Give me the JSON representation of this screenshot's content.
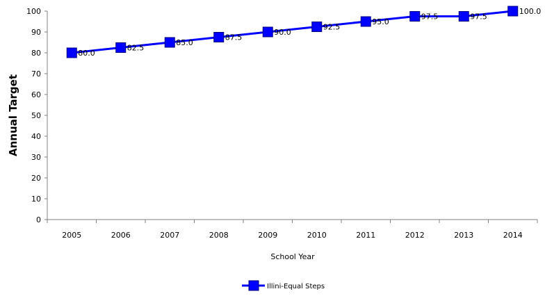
{
  "chart_data": {
    "type": "line",
    "title": "",
    "xlabel": "School Year",
    "ylabel": "Annual Target",
    "categories": [
      "2005",
      "2006",
      "2007",
      "2008",
      "2009",
      "2010",
      "2011",
      "2012",
      "2013",
      "2014"
    ],
    "series": [
      {
        "name": "Illini-Equal Steps",
        "values": [
          80.0,
          82.5,
          85.0,
          87.5,
          90.0,
          92.5,
          95.0,
          97.5,
          97.5,
          100.0
        ],
        "data_labels": [
          "80.0",
          "82.5",
          "85.0",
          "87.5",
          "90.0",
          "92.5",
          "95.0",
          "97.5",
          "97.5",
          "100.0"
        ],
        "color": "#0000ff",
        "marker": "square"
      }
    ],
    "ylim": [
      0,
      100
    ],
    "yticks": [
      0,
      10,
      20,
      30,
      40,
      50,
      60,
      70,
      80,
      90,
      100
    ],
    "grid": false,
    "legend": "bottom",
    "colors": {
      "axis": "#808080",
      "text": "#000000",
      "series": "#0000ff"
    }
  }
}
